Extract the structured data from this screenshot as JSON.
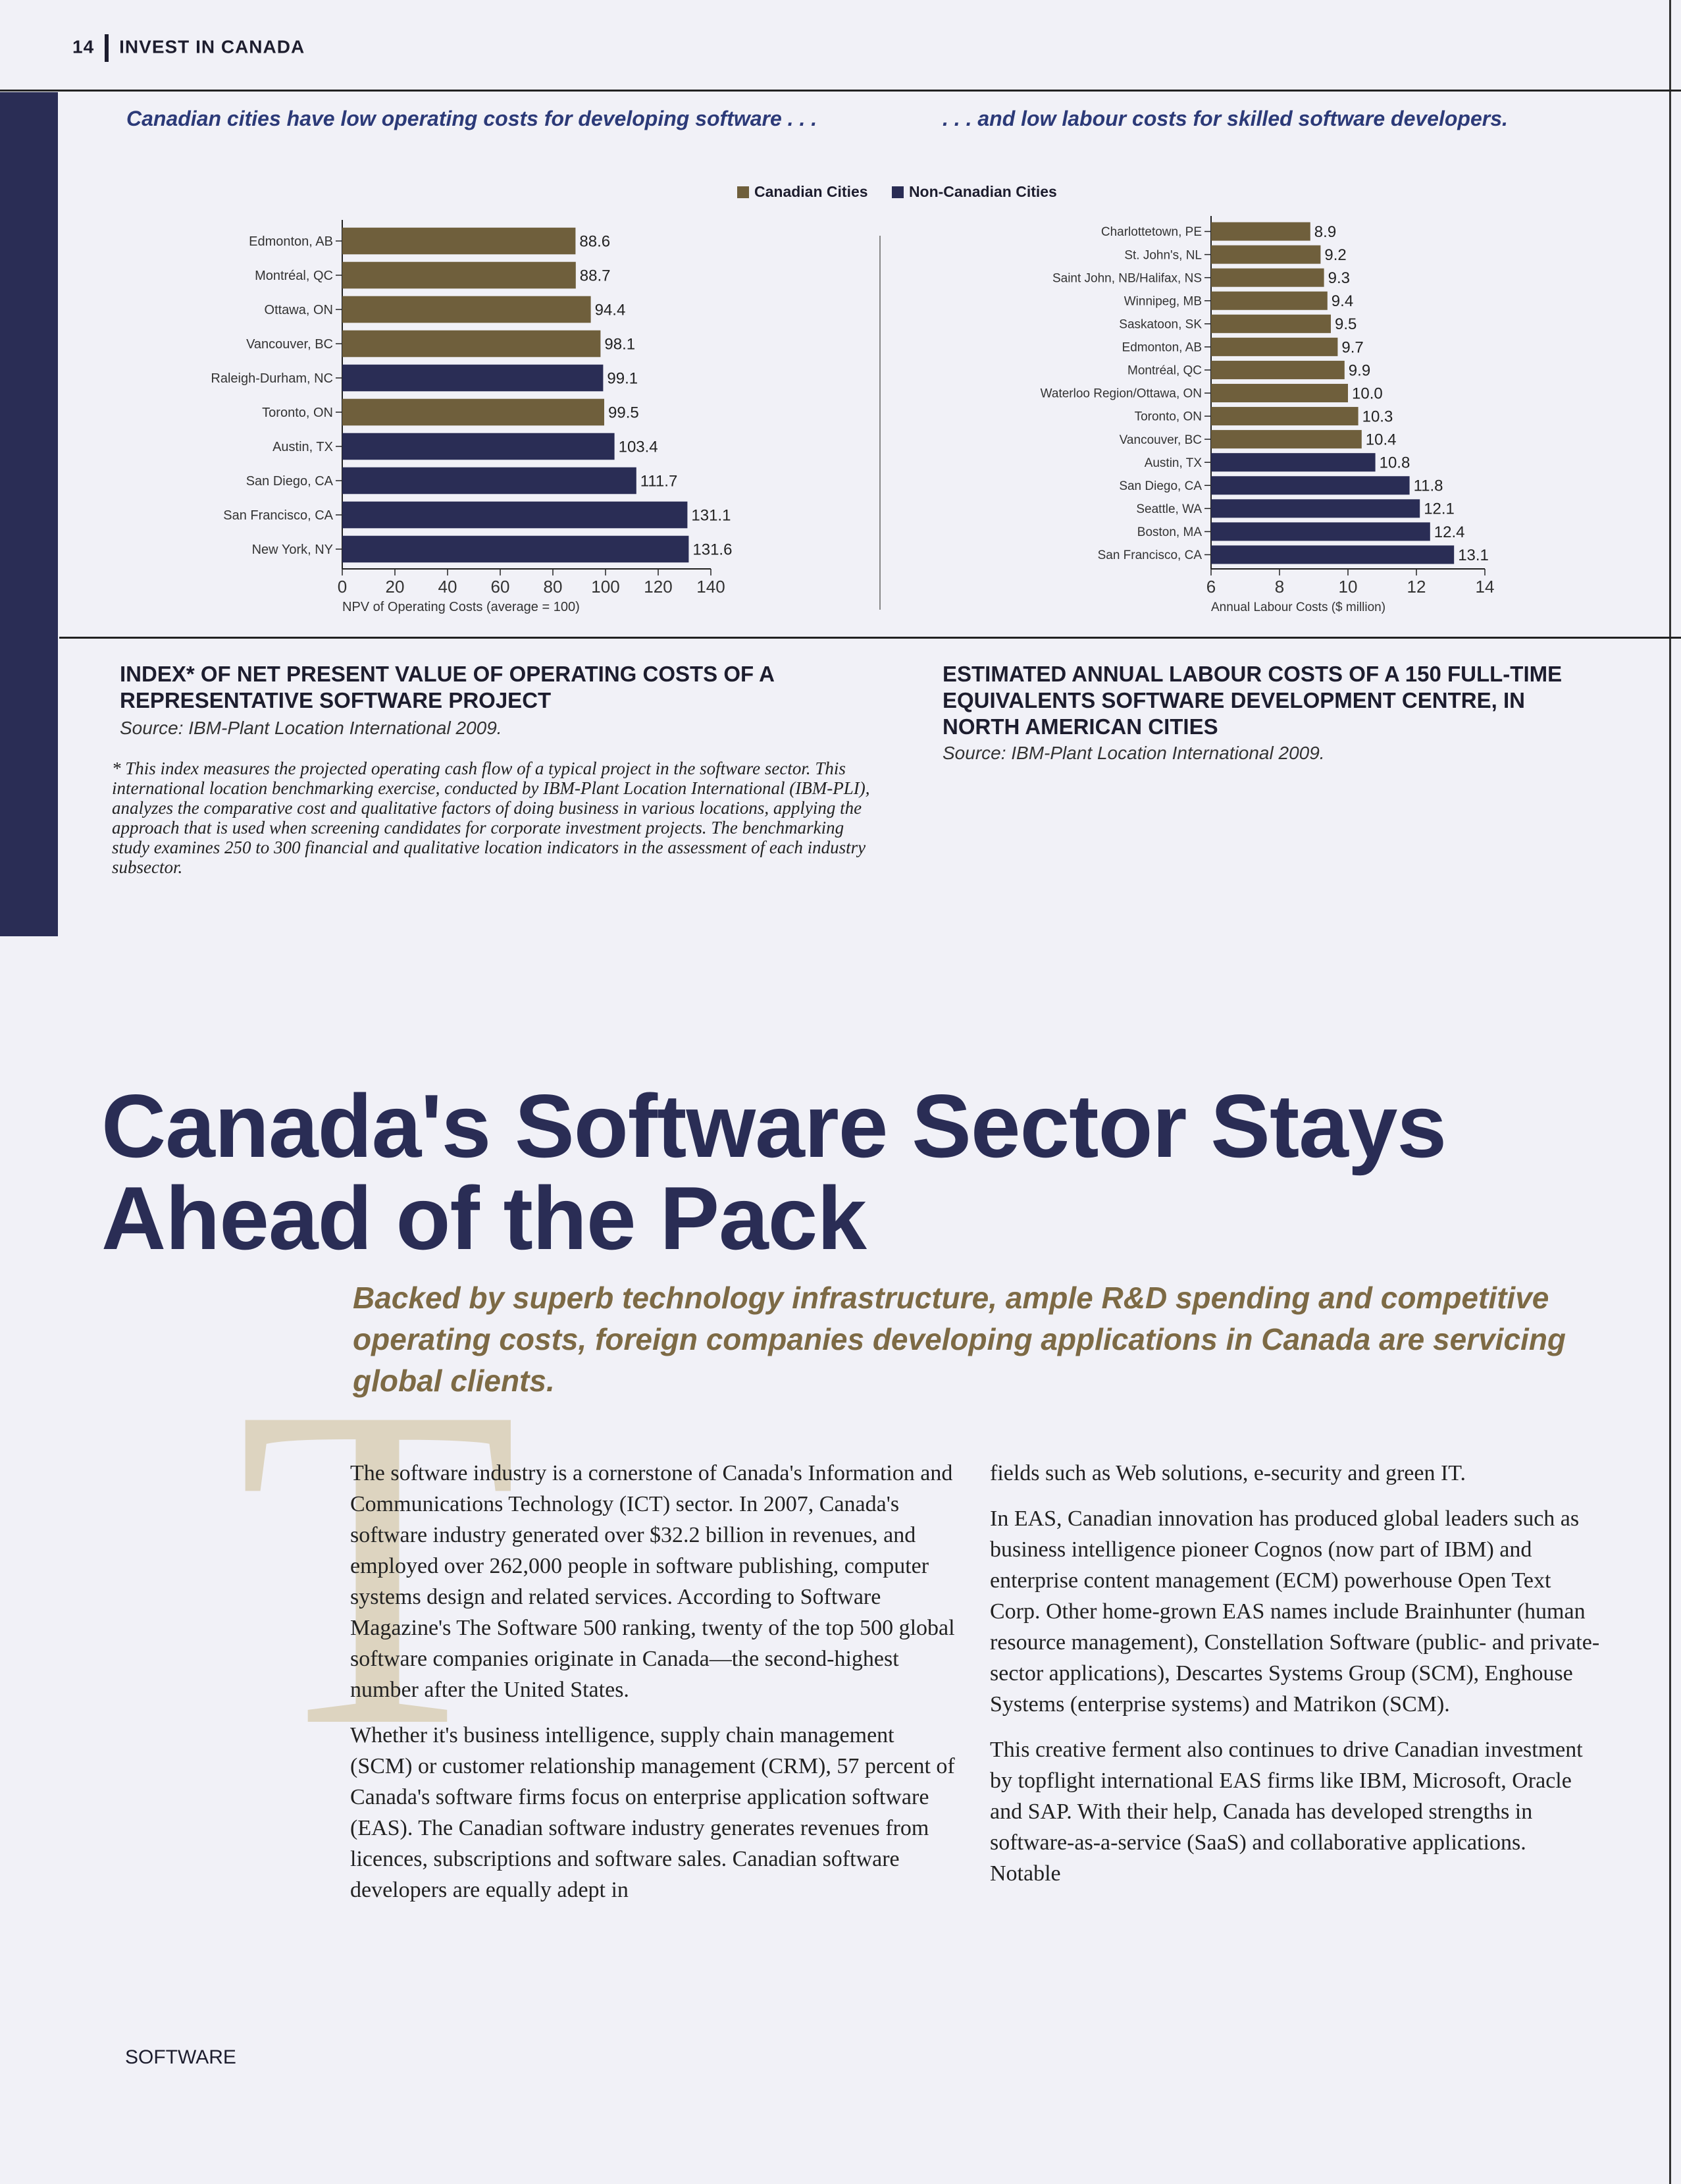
{
  "header": {
    "page_number": "14",
    "section": "INVEST IN CANADA"
  },
  "captions": {
    "left": "Canadian cities have low operating costs for developing software . . .",
    "right": ". . . and low labour costs for skilled software developers."
  },
  "legend": {
    "canadian": "Canadian Cities",
    "non_canadian": "Non-Canadian Cities"
  },
  "colors": {
    "canadian": "#6f5f3c",
    "non_canadian": "#2a2d55"
  },
  "chart_data": [
    {
      "type": "bar",
      "orientation": "horizontal",
      "categories": [
        "Edmonton, AB",
        "Montréal, QC",
        "Ottawa, ON",
        "Vancouver, BC",
        "Raleigh-Durham, NC",
        "Toronto, ON",
        "Austin, TX",
        "San Diego, CA",
        "San Francisco, CA",
        "New York, NY"
      ],
      "values": [
        88.6,
        88.7,
        94.4,
        98.1,
        99.1,
        99.5,
        103.4,
        111.7,
        131.1,
        131.6
      ],
      "value_labels": [
        "88.6",
        "88.7",
        "94.4",
        "98.1",
        "99.1",
        "99.5",
        "103.4",
        "111.7",
        "131.1",
        "131.6"
      ],
      "group": [
        "canadian",
        "canadian",
        "canadian",
        "canadian",
        "non_canadian",
        "canadian",
        "non_canadian",
        "non_canadian",
        "non_canadian",
        "non_canadian"
      ],
      "xlabel": "NPV of Operating Costs (average = 100)",
      "xlim": [
        0,
        140
      ],
      "xticks": [
        0,
        20,
        40,
        60,
        80,
        100,
        120,
        140
      ],
      "title": "INDEX* OF NET PRESENT VALUE OF OPERATING COSTS OF A REPRESENTATIVE SOFTWARE PROJECT",
      "source": "Source: IBM-Plant Location International 2009."
    },
    {
      "type": "bar",
      "orientation": "horizontal",
      "categories": [
        "Charlottetown, PE",
        "St. John's, NL",
        "Saint John, NB/Halifax, NS",
        "Winnipeg, MB",
        "Saskatoon, SK",
        "Edmonton, AB",
        "Montréal, QC",
        "Waterloo Region/Ottawa, ON",
        "Toronto, ON",
        "Vancouver, BC",
        "Austin, TX",
        "San Diego, CA",
        "Seattle, WA",
        "Boston, MA",
        "San Francisco, CA"
      ],
      "values": [
        8.9,
        9.2,
        9.3,
        9.4,
        9.5,
        9.7,
        9.9,
        10.0,
        10.3,
        10.4,
        10.8,
        11.8,
        12.1,
        12.4,
        13.1
      ],
      "value_labels": [
        "8.9",
        "9.2",
        "9.3",
        "9.4",
        "9.5",
        "9.7",
        "9.9",
        "10.0",
        "10.3",
        "10.4",
        "10.8",
        "11.8",
        "12.1",
        "12.4",
        "13.1"
      ],
      "group": [
        "canadian",
        "canadian",
        "canadian",
        "canadian",
        "canadian",
        "canadian",
        "canadian",
        "canadian",
        "canadian",
        "canadian",
        "non_canadian",
        "non_canadian",
        "non_canadian",
        "non_canadian",
        "non_canadian"
      ],
      "xlabel": "Annual Labour Costs ($ million)",
      "xlim": [
        6,
        14
      ],
      "xticks": [
        6,
        8,
        10,
        12,
        14
      ],
      "title": "ESTIMATED ANNUAL LABOUR COSTS OF A 150 FULL-TIME EQUIVALENTS SOFTWARE DEVELOPMENT CENTRE, IN NORTH AMERICAN CITIES",
      "source": "Source: IBM-Plant Location International 2009."
    }
  ],
  "footnote": "* This index measures the projected operating cash flow of a typical project in the software sector. This international location benchmarking exercise, conducted by IBM-Plant Location International (IBM-PLI), analyzes the comparative cost and qualitative factors of doing business in various locations, applying the approach that is used when screening candidates for corporate investment projects. The benchmarking study examines 250 to 300 financial and qualitative location indicators in the assessment of each industry subsector.",
  "article": {
    "headline": "Canada's Software Sector Stays Ahead of the Pack",
    "deck": "Backed by superb technology infrastructure, ample R&D spending and competitive operating costs, foreign companies developing applications in Canada are servicing global clients.",
    "dropcap": "T",
    "col1": [
      "The software industry is a cornerstone of Canada's Information and Communications Technology (ICT) sector. In 2007, Canada's software industry generated over $32.2 billion in revenues, and employed over 262,000 people in software publishing, computer systems design and related services. According to Software Magazine's The Software 500 ranking, twenty of the top 500 global software companies originate in Canada—the second-highest number after the United States.",
      "Whether it's business intelligence, supply chain management (SCM) or customer relationship management (CRM), 57 percent of Canada's software firms focus on enterprise application software (EAS). The Canadian software industry generates revenues from licences, subscriptions and software sales. Canadian software developers are equally adept in"
    ],
    "col2": [
      "fields such as Web solutions, e-security and green IT.",
      "In EAS, Canadian innovation has produced global leaders such as business intelligence pioneer Cognos (now part of IBM) and enterprise content management (ECM) powerhouse Open Text Corp. Other home-grown EAS names include Brainhunter (human resource management), Constellation Software (public- and private-sector applications), Descartes Systems Group (SCM), Enghouse Systems (enterprise systems) and Matrikon (SCM).",
      "This creative ferment also continues to drive Canadian investment by topflight international EAS firms like IBM, Microsoft, Oracle and SAP. With their help, Canada has developed strengths in software-as-a-service (SaaS) and collaborative applications. Notable"
    ]
  },
  "footer": {
    "section": "SOFTWARE"
  }
}
